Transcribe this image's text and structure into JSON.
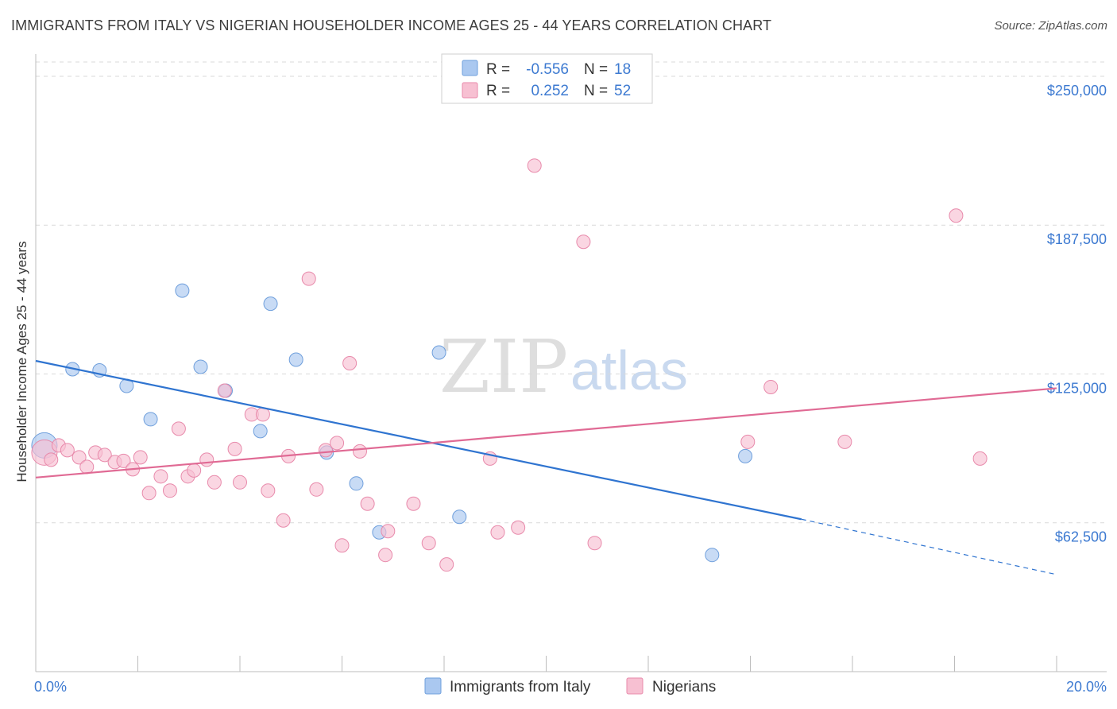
{
  "header": {
    "title": "IMMIGRANTS FROM ITALY VS NIGERIAN HOUSEHOLDER INCOME AGES 25 - 44 YEARS CORRELATION CHART",
    "source": "Source: ZipAtlas.com"
  },
  "watermark": {
    "zip": "ZIP",
    "atlas": "atlas"
  },
  "legend": {
    "rows": [
      {
        "r_label": "R =",
        "r_value": "-0.556",
        "n_label": "N =",
        "n_value": "18"
      },
      {
        "r_label": "R =",
        "r_value": "0.252",
        "n_label": "N =",
        "n_value": "52"
      }
    ]
  },
  "bottom_legend": {
    "items": [
      {
        "label": "Immigrants from Italy"
      },
      {
        "label": "Nigerians"
      }
    ]
  },
  "colors": {
    "italy_fill": "#aac8f0",
    "italy_stroke": "#6f9fdc",
    "italy_line": "#2f74d0",
    "nigeria_fill": "#f7c0d2",
    "nigeria_stroke": "#e88aab",
    "nigeria_line": "#e06a94",
    "axis_text": "#3d7ad1",
    "grid": "#d9d9d9"
  },
  "chart_data": {
    "type": "scatter",
    "title": "IMMIGRANTS FROM ITALY VS NIGERIAN HOUSEHOLDER INCOME AGES 25 - 44 YEARS CORRELATION CHART",
    "xlabel": "",
    "ylabel": "Householder Income Ages 25 - 44 years",
    "xlim": [
      0,
      20
    ],
    "ylim": [
      0,
      256000
    ],
    "x_tick_labels": [
      "0.0%",
      "20.0%"
    ],
    "y_ticks": [
      62500,
      125000,
      187500,
      250000
    ],
    "y_tick_labels": [
      "$62,500",
      "$125,000",
      "$187,500",
      "$250,000"
    ],
    "grid": true,
    "series": [
      {
        "name": "Immigrants from Italy",
        "r": -0.556,
        "n": 18,
        "points": [
          {
            "x": 0.17,
            "y": 95000,
            "big": true
          },
          {
            "x": 0.72,
            "y": 127000
          },
          {
            "x": 1.25,
            "y": 126500
          },
          {
            "x": 1.78,
            "y": 120000
          },
          {
            "x": 2.25,
            "y": 106000
          },
          {
            "x": 2.87,
            "y": 160000
          },
          {
            "x": 3.23,
            "y": 128000
          },
          {
            "x": 3.72,
            "y": 118000
          },
          {
            "x": 4.4,
            "y": 101000
          },
          {
            "x": 4.6,
            "y": 154500
          },
          {
            "x": 5.1,
            "y": 131000
          },
          {
            "x": 5.7,
            "y": 92000
          },
          {
            "x": 6.28,
            "y": 79000
          },
          {
            "x": 6.73,
            "y": 58500
          },
          {
            "x": 7.9,
            "y": 134000
          },
          {
            "x": 8.3,
            "y": 65000
          },
          {
            "x": 13.9,
            "y": 90500
          },
          {
            "x": 13.25,
            "y": 49000
          }
        ],
        "trend": {
          "x0": 0,
          "y0": 130500,
          "x1": 15.0,
          "y1": 64000,
          "dash_x1": 19.95,
          "dash_y1": 41000
        }
      },
      {
        "name": "Nigerians",
        "r": 0.252,
        "n": 52,
        "points": [
          {
            "x": 0.17,
            "y": 92000,
            "big": true
          },
          {
            "x": 0.3,
            "y": 89000
          },
          {
            "x": 0.45,
            "y": 95000
          },
          {
            "x": 0.62,
            "y": 93000
          },
          {
            "x": 0.85,
            "y": 90000
          },
          {
            "x": 1.0,
            "y": 86000
          },
          {
            "x": 1.17,
            "y": 92000
          },
          {
            "x": 1.35,
            "y": 91000
          },
          {
            "x": 1.55,
            "y": 88000
          },
          {
            "x": 1.72,
            "y": 88500
          },
          {
            "x": 1.9,
            "y": 85000
          },
          {
            "x": 2.05,
            "y": 90000
          },
          {
            "x": 2.22,
            "y": 75000
          },
          {
            "x": 2.45,
            "y": 82000
          },
          {
            "x": 2.63,
            "y": 76000
          },
          {
            "x": 2.8,
            "y": 102000
          },
          {
            "x": 2.98,
            "y": 82000
          },
          {
            "x": 3.1,
            "y": 84500
          },
          {
            "x": 3.35,
            "y": 89000
          },
          {
            "x": 3.5,
            "y": 79500
          },
          {
            "x": 3.7,
            "y": 118000
          },
          {
            "x": 3.9,
            "y": 93500
          },
          {
            "x": 4.0,
            "y": 79500
          },
          {
            "x": 4.23,
            "y": 108000
          },
          {
            "x": 4.45,
            "y": 108000
          },
          {
            "x": 4.55,
            "y": 76000
          },
          {
            "x": 4.85,
            "y": 63500
          },
          {
            "x": 4.95,
            "y": 90500
          },
          {
            "x": 5.35,
            "y": 165000
          },
          {
            "x": 5.5,
            "y": 76500
          },
          {
            "x": 5.68,
            "y": 93000
          },
          {
            "x": 5.9,
            "y": 96000
          },
          {
            "x": 6.0,
            "y": 53000
          },
          {
            "x": 6.15,
            "y": 129500
          },
          {
            "x": 6.35,
            "y": 92500
          },
          {
            "x": 6.5,
            "y": 70500
          },
          {
            "x": 6.85,
            "y": 49000
          },
          {
            "x": 6.9,
            "y": 59000
          },
          {
            "x": 7.4,
            "y": 70500
          },
          {
            "x": 7.7,
            "y": 54000
          },
          {
            "x": 8.05,
            "y": 45000
          },
          {
            "x": 8.9,
            "y": 89500
          },
          {
            "x": 9.05,
            "y": 58500
          },
          {
            "x": 9.45,
            "y": 60500
          },
          {
            "x": 9.77,
            "y": 212500
          },
          {
            "x": 10.73,
            "y": 180500
          },
          {
            "x": 10.95,
            "y": 54000
          },
          {
            "x": 13.95,
            "y": 96500
          },
          {
            "x": 14.4,
            "y": 119500
          },
          {
            "x": 15.85,
            "y": 96500
          },
          {
            "x": 18.03,
            "y": 191500
          },
          {
            "x": 18.5,
            "y": 89500
          }
        ],
        "trend": {
          "x0": 0,
          "y0": 81500,
          "x1": 20.0,
          "y1": 119000
        }
      }
    ]
  }
}
